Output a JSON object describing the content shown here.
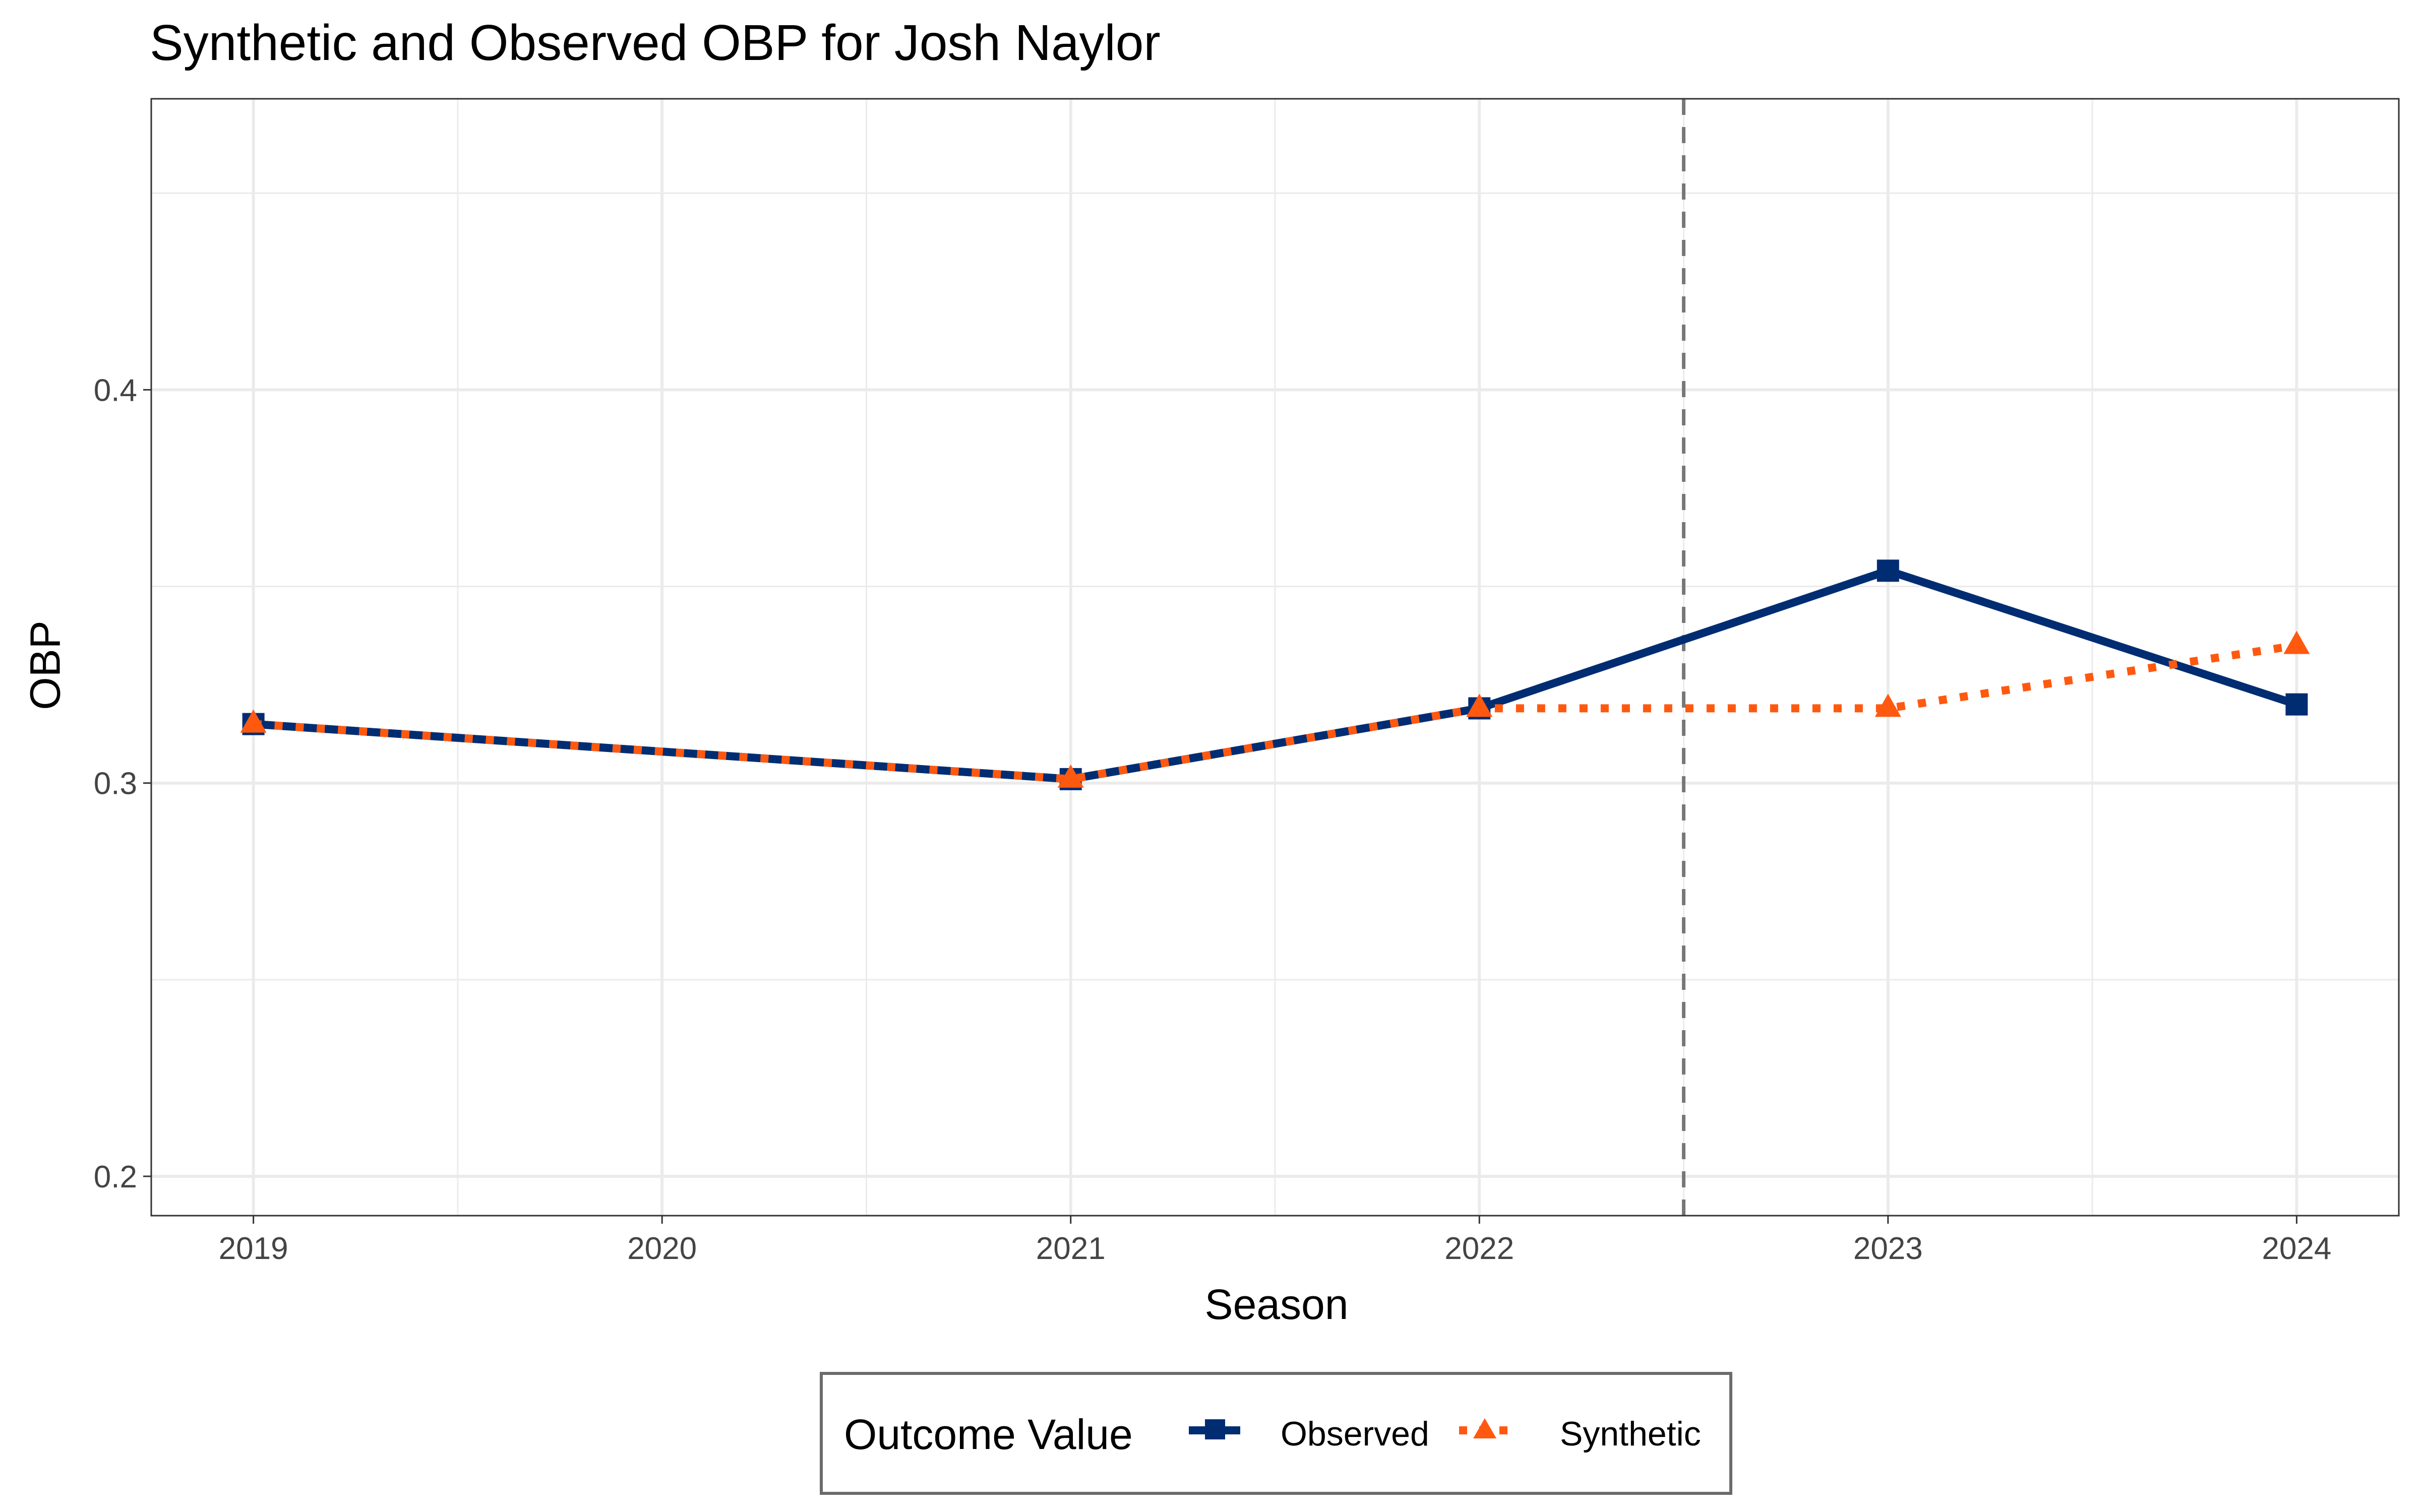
{
  "chart_data": {
    "type": "line",
    "title": "Synthetic and Observed OBP for Josh Naylor",
    "xlabel": "Season",
    "ylabel": "OBP",
    "x": [
      2019,
      2021,
      2022,
      2023,
      2024
    ],
    "x_ticks": [
      "2019",
      "2020",
      "2021",
      "2022",
      "2023",
      "2024"
    ],
    "y_ticks": [
      "0.2",
      "0.3",
      "0.4"
    ],
    "xlim": [
      2018.75,
      2024.25
    ],
    "ylim": [
      0.19,
      0.474
    ],
    "series": [
      {
        "name": "Observed",
        "values": [
          0.315,
          0.301,
          0.319,
          0.354,
          0.32
        ],
        "color": "#002D72",
        "line": "solid",
        "marker": "square"
      },
      {
        "name": "Synthetic",
        "values": [
          0.315,
          0.301,
          0.319,
          0.319,
          0.335
        ],
        "color": "#FF5910",
        "line": "dotted",
        "marker": "triangle"
      }
    ],
    "intervention_line": {
      "x": 2022.5,
      "style": "dashed",
      "color": "#777777"
    },
    "grid": true,
    "legend": {
      "position": "bottom",
      "title": "Outcome Value",
      "items": [
        "Observed",
        "Synthetic"
      ]
    }
  }
}
